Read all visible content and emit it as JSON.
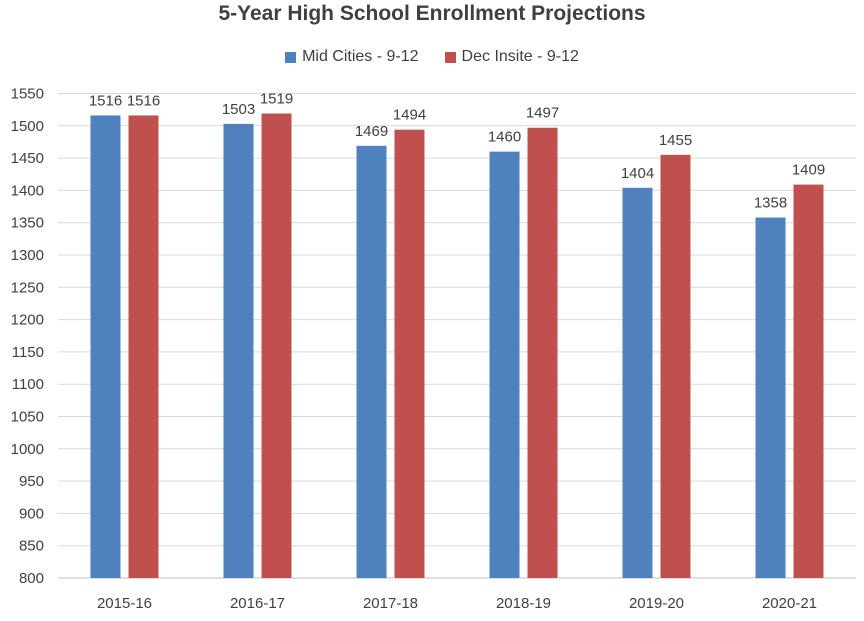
{
  "chart_data": {
    "type": "bar",
    "title": "5-Year High School Enrollment Projections",
    "categories": [
      "2015-16",
      "2016-17",
      "2017-18",
      "2018-19",
      "2019-20",
      "2020-21"
    ],
    "series": [
      {
        "name": "Mid Cities - 9-12",
        "color": "#4f81bd",
        "values": [
          1516,
          1503,
          1469,
          1460,
          1404,
          1358
        ]
      },
      {
        "name": "Dec Insite - 9-12",
        "color": "#c0504d",
        "values": [
          1516,
          1519,
          1494,
          1497,
          1455,
          1409
        ]
      }
    ],
    "y_ticks": [
      800,
      850,
      900,
      950,
      1000,
      1050,
      1100,
      1150,
      1200,
      1250,
      1300,
      1350,
      1400,
      1450,
      1500,
      1550
    ],
    "ylim": [
      800,
      1550
    ],
    "grid": true,
    "legend_position": "top",
    "data_labels": true
  }
}
